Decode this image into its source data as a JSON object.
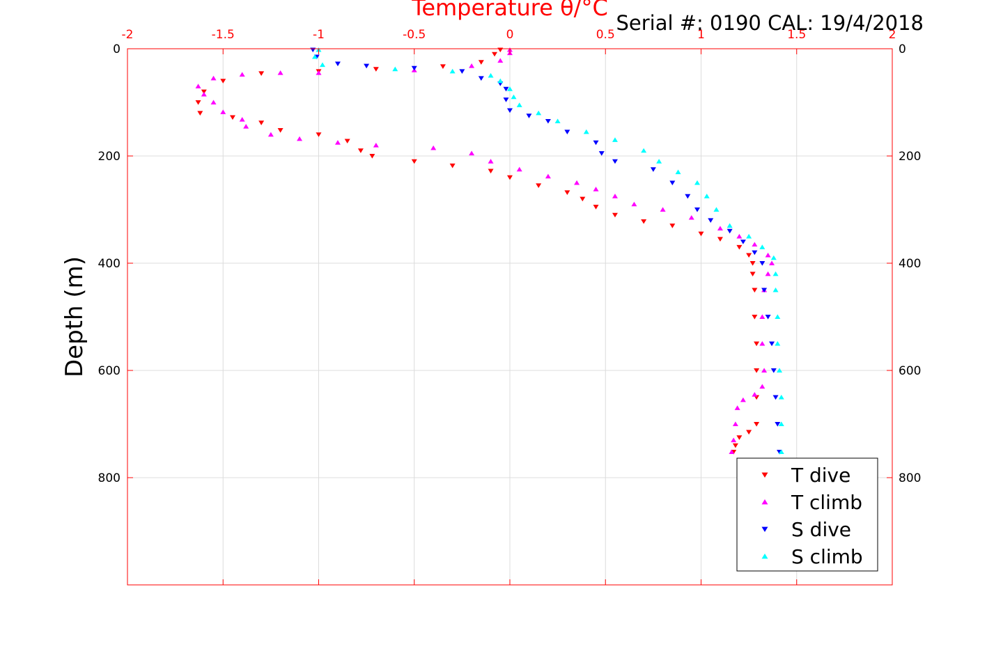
{
  "chart_data": {
    "type": "scatter",
    "title": "Temperature θ/°C",
    "subtitle": "Serial #: 0190  CAL: 19/4/2018",
    "xlabel": "Temperature θ/°C",
    "ylabel": "Depth (m)",
    "xlim": [
      -2,
      2
    ],
    "ylim": [
      0,
      1000
    ],
    "y_reversed": true,
    "x_ticks": [
      "-2",
      "-1.5",
      "-1",
      "-0.5",
      "0",
      "0.5",
      "1",
      "1.5",
      "2"
    ],
    "y_ticks": [
      "0",
      "200",
      "400",
      "600",
      "800"
    ],
    "grid": true,
    "legend_position": "bottom-right",
    "series": [
      {
        "name": "T dive",
        "color": "#ff0000",
        "marker": "triangle-down",
        "points": [
          [
            -0.05,
            2
          ],
          [
            -0.08,
            10
          ],
          [
            -0.15,
            25
          ],
          [
            -0.35,
            33
          ],
          [
            -0.7,
            38
          ],
          [
            -1.0,
            42
          ],
          [
            -1.3,
            46
          ],
          [
            -1.5,
            60
          ],
          [
            -1.6,
            80
          ],
          [
            -1.63,
            100
          ],
          [
            -1.62,
            120
          ],
          [
            -1.45,
            128
          ],
          [
            -1.3,
            138
          ],
          [
            -1.2,
            152
          ],
          [
            -1.0,
            160
          ],
          [
            -0.85,
            172
          ],
          [
            -0.78,
            190
          ],
          [
            -0.72,
            200
          ],
          [
            -0.5,
            210
          ],
          [
            -0.3,
            218
          ],
          [
            -0.1,
            228
          ],
          [
            0.0,
            240
          ],
          [
            0.15,
            255
          ],
          [
            0.3,
            268
          ],
          [
            0.38,
            280
          ],
          [
            0.45,
            295
          ],
          [
            0.55,
            310
          ],
          [
            0.7,
            322
          ],
          [
            0.85,
            330
          ],
          [
            1.0,
            345
          ],
          [
            1.1,
            355
          ],
          [
            1.2,
            370
          ],
          [
            1.25,
            385
          ],
          [
            1.27,
            400
          ],
          [
            1.27,
            420
          ],
          [
            1.28,
            450
          ],
          [
            1.28,
            500
          ],
          [
            1.29,
            550
          ],
          [
            1.29,
            600
          ],
          [
            1.29,
            650
          ],
          [
            1.29,
            700
          ],
          [
            1.25,
            715
          ],
          [
            1.2,
            725
          ],
          [
            1.18,
            740
          ],
          [
            1.17,
            752
          ]
        ]
      },
      {
        "name": "T climb",
        "color": "#ff00ff",
        "marker": "triangle-up",
        "points": [
          [
            0.0,
            2
          ],
          [
            0.0,
            8
          ],
          [
            -0.05,
            22
          ],
          [
            -0.2,
            32
          ],
          [
            -0.5,
            40
          ],
          [
            -1.0,
            45
          ],
          [
            -1.2,
            45
          ],
          [
            -1.4,
            48
          ],
          [
            -1.55,
            55
          ],
          [
            -1.63,
            70
          ],
          [
            -1.6,
            85
          ],
          [
            -1.55,
            100
          ],
          [
            -1.5,
            118
          ],
          [
            -1.4,
            132
          ],
          [
            -1.38,
            145
          ],
          [
            -1.25,
            160
          ],
          [
            -1.1,
            168
          ],
          [
            -0.9,
            175
          ],
          [
            -0.7,
            180
          ],
          [
            -0.4,
            185
          ],
          [
            -0.2,
            195
          ],
          [
            -0.1,
            210
          ],
          [
            0.05,
            225
          ],
          [
            0.2,
            238
          ],
          [
            0.35,
            250
          ],
          [
            0.45,
            262
          ],
          [
            0.55,
            275
          ],
          [
            0.65,
            290
          ],
          [
            0.8,
            300
          ],
          [
            0.95,
            315
          ],
          [
            1.1,
            335
          ],
          [
            1.2,
            350
          ],
          [
            1.28,
            365
          ],
          [
            1.35,
            385
          ],
          [
            1.37,
            400
          ],
          [
            1.35,
            420
          ],
          [
            1.33,
            450
          ],
          [
            1.32,
            500
          ],
          [
            1.32,
            550
          ],
          [
            1.33,
            600
          ],
          [
            1.32,
            630
          ],
          [
            1.28,
            645
          ],
          [
            1.22,
            655
          ],
          [
            1.19,
            670
          ],
          [
            1.18,
            700
          ],
          [
            1.17,
            730
          ],
          [
            1.16,
            752
          ]
        ]
      },
      {
        "name": "S dive",
        "color": "#0000ff",
        "marker": "triangle-down",
        "points": [
          [
            -1.03,
            2
          ],
          [
            -1.01,
            15
          ],
          [
            -0.9,
            28
          ],
          [
            -0.75,
            32
          ],
          [
            -0.5,
            36
          ],
          [
            -0.25,
            42
          ],
          [
            -0.15,
            55
          ],
          [
            -0.05,
            65
          ],
          [
            -0.02,
            75
          ],
          [
            -0.02,
            95
          ],
          [
            0.0,
            115
          ],
          [
            0.1,
            125
          ],
          [
            0.2,
            135
          ],
          [
            0.3,
            155
          ],
          [
            0.45,
            175
          ],
          [
            0.48,
            195
          ],
          [
            0.55,
            210
          ],
          [
            0.75,
            225
          ],
          [
            0.85,
            250
          ],
          [
            0.93,
            275
          ],
          [
            0.98,
            300
          ],
          [
            1.05,
            320
          ],
          [
            1.15,
            340
          ],
          [
            1.22,
            360
          ],
          [
            1.28,
            380
          ],
          [
            1.32,
            400
          ],
          [
            1.33,
            450
          ],
          [
            1.35,
            500
          ],
          [
            1.37,
            550
          ],
          [
            1.38,
            600
          ],
          [
            1.39,
            650
          ],
          [
            1.4,
            700
          ],
          [
            1.41,
            752
          ]
        ]
      },
      {
        "name": "S climb",
        "color": "#00ffff",
        "marker": "triangle-up",
        "points": [
          [
            -1.0,
            2
          ],
          [
            -1.02,
            15
          ],
          [
            -0.98,
            30
          ],
          [
            -0.6,
            38
          ],
          [
            -0.3,
            42
          ],
          [
            -0.1,
            50
          ],
          [
            -0.05,
            60
          ],
          [
            0.0,
            75
          ],
          [
            0.02,
            90
          ],
          [
            0.05,
            105
          ],
          [
            0.15,
            120
          ],
          [
            0.25,
            135
          ],
          [
            0.4,
            155
          ],
          [
            0.55,
            170
          ],
          [
            0.7,
            190
          ],
          [
            0.78,
            210
          ],
          [
            0.88,
            230
          ],
          [
            0.98,
            250
          ],
          [
            1.03,
            275
          ],
          [
            1.08,
            300
          ],
          [
            1.15,
            330
          ],
          [
            1.25,
            350
          ],
          [
            1.32,
            370
          ],
          [
            1.38,
            390
          ],
          [
            1.39,
            420
          ],
          [
            1.39,
            450
          ],
          [
            1.4,
            500
          ],
          [
            1.4,
            550
          ],
          [
            1.41,
            600
          ],
          [
            1.42,
            650
          ],
          [
            1.42,
            700
          ],
          [
            1.42,
            752
          ]
        ]
      }
    ]
  }
}
